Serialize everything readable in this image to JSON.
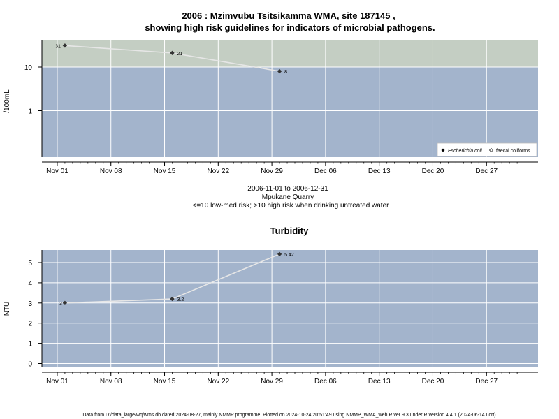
{
  "title_line1": "2006 : Mzimvubu Tsitsikamma WMA, site 187145 ,",
  "title_line2": "showing high risk guidelines for indicators of microbial pathogens.",
  "caption": {
    "line1": "2006-11-01 to 2006-12-31",
    "line2": "Mpukane Quarry",
    "line3": "<=10 low-med risk; >10 high risk when drinking untreated water"
  },
  "footer": "Data from D:/data_large/wq/wms.db dated 2024-08-27, mainly NMMP programme. Plotted on 2024-10-24 20:51:49 using NMMP_WMA_web.R ver 9.3 under R version 4.4.1 (2024-06-14 ucrt)",
  "colors": {
    "low_band": "#a3b4cc",
    "high_band": "#c4cec3",
    "line": "#e6e6e6",
    "marker": "#333333",
    "grid": "#ffffff"
  },
  "chart_data": [
    {
      "type": "line",
      "title": "",
      "ylabel": "/100mL",
      "y_scale": "log",
      "yticks": [
        "1",
        "10"
      ],
      "x_tick_labels": [
        "Nov 01",
        "Nov 08",
        "Nov 15",
        "Nov 22",
        "Nov 29",
        "Dec 06",
        "Dec 13",
        "Dec 20",
        "Dec 27"
      ],
      "threshold": 10,
      "legend": {
        "placement": "bottom-right",
        "items": [
          "Escherichia coli",
          "faecal coliforms"
        ]
      },
      "series": [
        {
          "name": "Escherichia coli",
          "x": [
            "2006-11-02",
            "2006-11-16",
            "2006-11-30"
          ],
          "values": [
            31,
            21,
            8
          ],
          "labels": [
            "31",
            "21",
            "8"
          ]
        }
      ]
    },
    {
      "type": "line",
      "title": "Turbidity",
      "ylabel": "NTU",
      "ylim": [
        0,
        5.6
      ],
      "yticks": [
        "0",
        "1",
        "2",
        "3",
        "4",
        "5"
      ],
      "x_tick_labels": [
        "Nov 01",
        "Nov 08",
        "Nov 15",
        "Nov 22",
        "Nov 29",
        "Dec 06",
        "Dec 13",
        "Dec 20",
        "Dec 27"
      ],
      "series": [
        {
          "x": [
            "2006-11-02",
            "2006-11-16",
            "2006-11-30"
          ],
          "values": [
            3,
            3.2,
            5.42
          ],
          "labels": [
            "3",
            "3.2",
            "5.42"
          ]
        }
      ]
    }
  ]
}
